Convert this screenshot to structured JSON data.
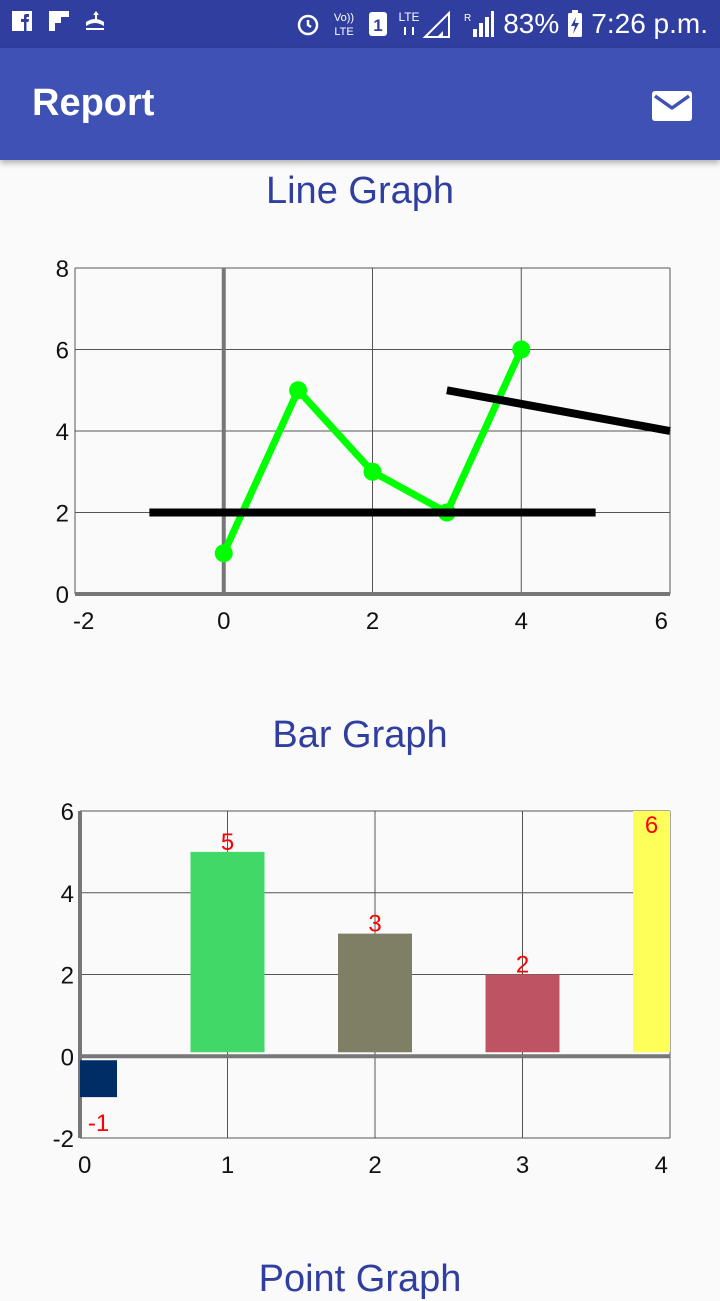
{
  "status_bar": {
    "battery": "83%",
    "time": "7:26 p.m."
  },
  "app_bar": {
    "title": "Report",
    "action_icon": "mail-icon"
  },
  "colors": {
    "primary": "#3f51b5",
    "primary_dark": "#303f9f",
    "line_series": "#00ff00",
    "trend_lines": "#000000",
    "bar_labels": "#ff0000"
  },
  "sections": {
    "line_title": "Line Graph",
    "bar_title": "Bar Graph",
    "point_title": "Point Graph"
  },
  "chart_data": [
    {
      "type": "line",
      "title": "Line Graph",
      "xlim": [
        -2,
        6
      ],
      "ylim": [
        0,
        8
      ],
      "xticks": [
        "-2",
        "0",
        "2",
        "4",
        "6"
      ],
      "yticks": [
        "0",
        "2",
        "4",
        "6",
        "8"
      ],
      "grid": true,
      "series": [
        {
          "color": "#00ff00",
          "x": [
            0,
            1,
            2,
            3,
            4
          ],
          "y": [
            1,
            5,
            3,
            2,
            6
          ],
          "markers": true
        },
        {
          "color": "#000000",
          "x": [
            -1,
            5
          ],
          "y": [
            2,
            2
          ],
          "markers": false
        },
        {
          "color": "#000000",
          "x": [
            3,
            6
          ],
          "y": [
            5,
            4
          ],
          "markers": false
        }
      ]
    },
    {
      "type": "bar",
      "title": "Bar Graph",
      "xlim": [
        0,
        4
      ],
      "ylim": [
        -2,
        6
      ],
      "xticks": [
        "0",
        "1",
        "2",
        "3",
        "4"
      ],
      "yticks": [
        "-2",
        "0",
        "2",
        "4",
        "6"
      ],
      "grid": true,
      "x": [
        0,
        1,
        2,
        3,
        4
      ],
      "values": [
        -1,
        5,
        3,
        2,
        6
      ],
      "labels": [
        "-1",
        "5",
        "3",
        "2",
        "6"
      ],
      "colors": [
        "#002d66",
        "#42d868",
        "#7f7f65",
        "#be5463",
        "#ffff5a"
      ]
    }
  ]
}
